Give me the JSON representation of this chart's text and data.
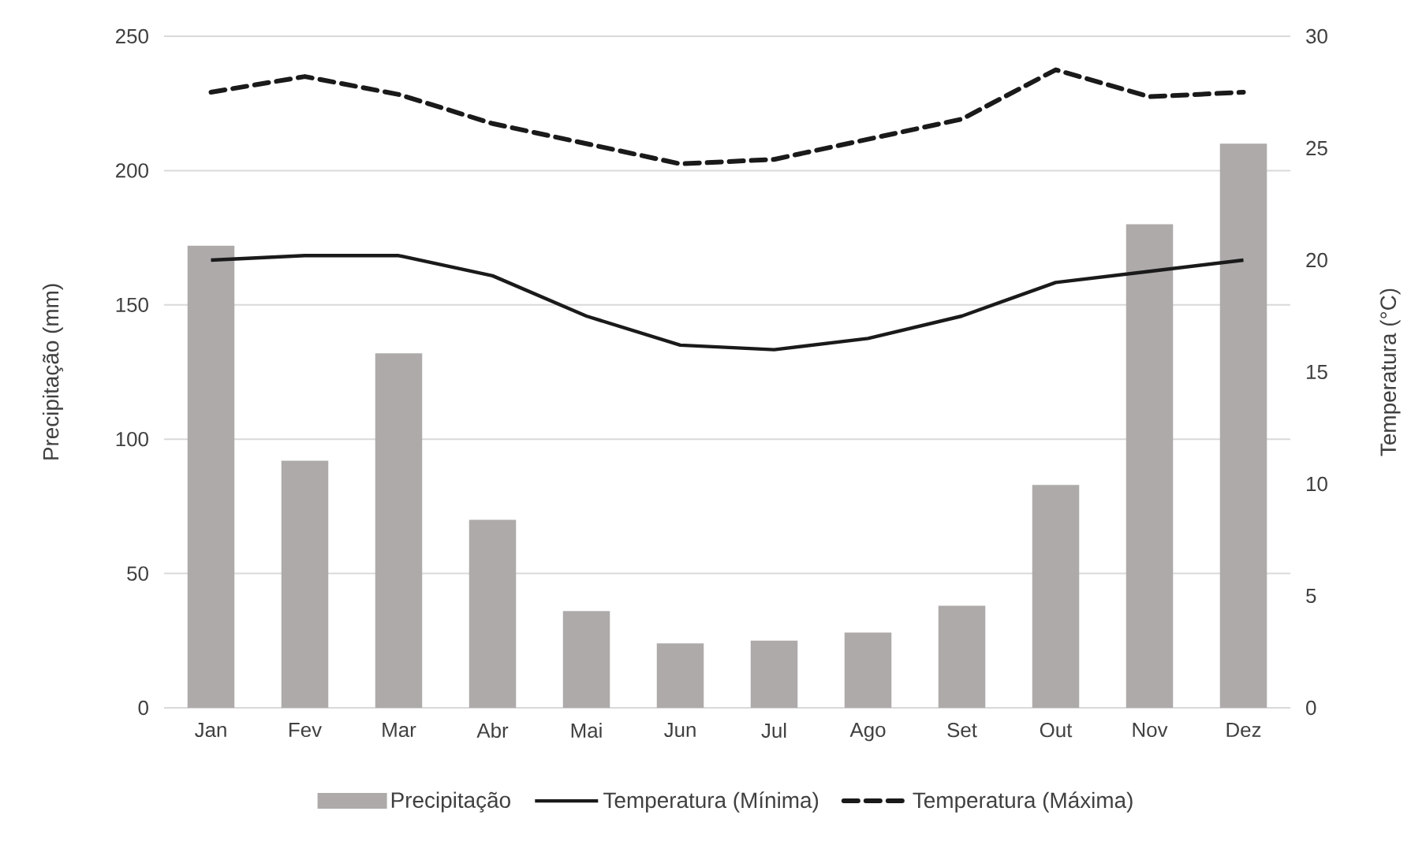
{
  "chart_data": {
    "type": "bar",
    "categories": [
      "Jan",
      "Fev",
      "Mar",
      "Abr",
      "Mai",
      "Jun",
      "Jul",
      "Ago",
      "Set",
      "Out",
      "Nov",
      "Dez"
    ],
    "series": [
      {
        "name": "Precipitação",
        "color": "#aeaaaa",
        "values": [
          172,
          92,
          132,
          70,
          36,
          24,
          25,
          28,
          38,
          83,
          180,
          210
        ]
      },
      {
        "name": "Temperatura (Mínima)",
        "type": "line",
        "axis": "y2",
        "color": "#1a1a1a",
        "line_style": "solid",
        "values": [
          20.0,
          20.2,
          20.2,
          19.3,
          17.5,
          16.2,
          16.0,
          16.5,
          17.5,
          19.0,
          19.5,
          20.0
        ]
      },
      {
        "name": "Temperatura (Máxima)",
        "type": "line",
        "axis": "y2",
        "color": "#1a1a1a",
        "line_style": "dashed",
        "values": [
          27.5,
          28.2,
          27.4,
          26.1,
          25.2,
          24.3,
          24.5,
          25.4,
          26.3,
          28.5,
          27.3,
          27.5
        ]
      }
    ],
    "ylabel": "Precipitação (mm)",
    "y2label": "Temperatura (°C)",
    "ylim": [
      0,
      250
    ],
    "yticks": [
      0,
      50,
      100,
      150,
      200,
      250
    ],
    "y2lim": [
      0,
      30
    ],
    "y2ticks": [
      0,
      5,
      10,
      15,
      20,
      25,
      30
    ],
    "grid": "y",
    "legend": "bottom"
  }
}
